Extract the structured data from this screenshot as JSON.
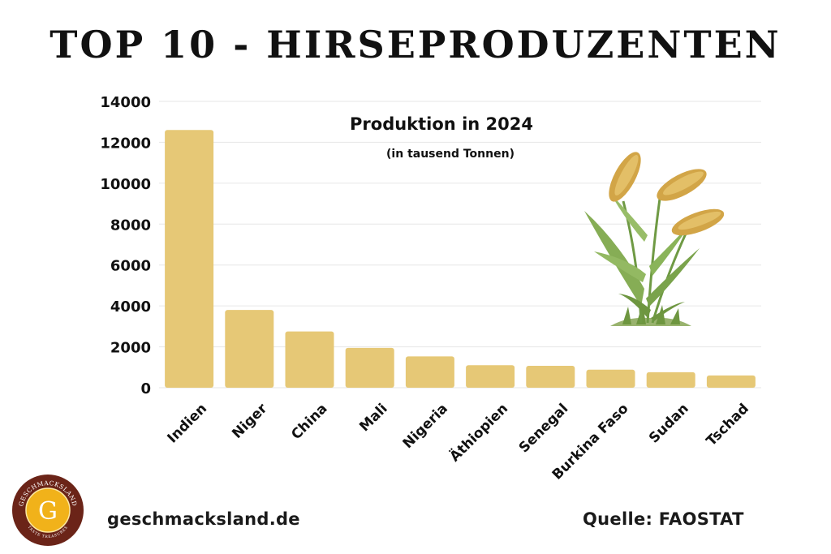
{
  "header": {
    "title": "TOP 10 - HIRSEPRODUZENTEN"
  },
  "chart_data": {
    "type": "bar",
    "title": "Produktion in 2024",
    "subtitle": "(in tausend Tonnen)",
    "categories": [
      "Indien",
      "Niger",
      "China",
      "Mali",
      "Nigeria",
      "Äthiopien",
      "Senegal",
      "Burkina Faso",
      "Sudan",
      "Tschad"
    ],
    "values": [
      12600,
      3800,
      2750,
      1950,
      1530,
      1100,
      1070,
      880,
      760,
      600
    ],
    "ylim": [
      0,
      14000
    ],
    "yticks": [
      0,
      2000,
      4000,
      6000,
      8000,
      10000,
      12000,
      14000
    ],
    "grid": true,
    "legend": "none",
    "bar_color": "#e6c876",
    "grid_color": "#e6e6e6"
  },
  "footer": {
    "website": "geschmacksland.de",
    "source": "Quelle: FAOSTAT"
  },
  "logo": {
    "arc_text": "GESCHMACKSLAND",
    "letter": "G",
    "tagline": "TASTE TREASURES",
    "ring_color": "#6b2418",
    "inner_color": "#f1b21a"
  },
  "illustration": {
    "icon": "millet-plant-icon"
  }
}
